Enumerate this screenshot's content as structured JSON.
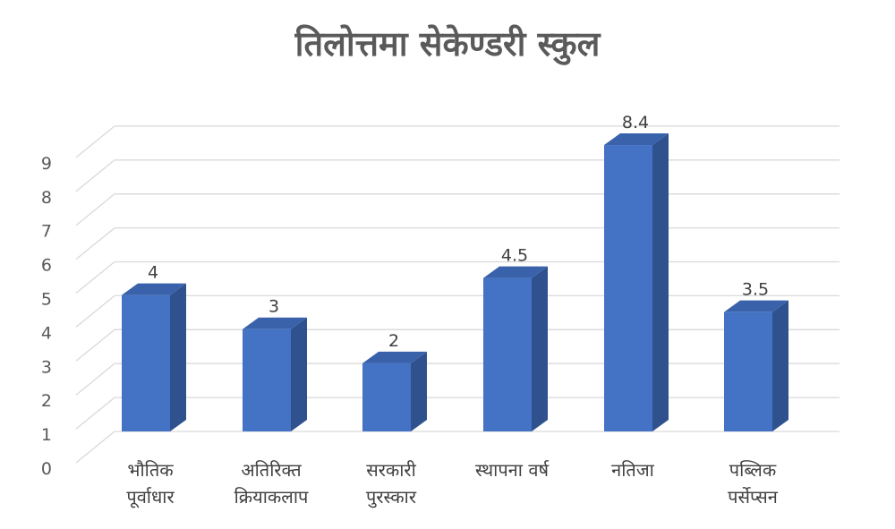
{
  "chart_data": {
    "type": "bar",
    "title": "तिलोत्तमा सेकेण्डरी स्कुल",
    "categories": [
      [
        "भौतिक",
        "पूर्वाधार"
      ],
      [
        "अतिरिक्त",
        "क्रियाकलाप"
      ],
      [
        "सरकारी",
        "पुरस्कार"
      ],
      [
        "स्थापना वर्ष"
      ],
      [
        "नतिजा"
      ],
      [
        "पब्लिक",
        "पर्सेप्सन"
      ]
    ],
    "values": [
      4,
      3,
      2,
      4.5,
      8.4,
      3.5
    ],
    "data_labels": [
      "4",
      "3",
      "2",
      "4.5",
      "8.4",
      "3.5"
    ],
    "yticks": [
      "0",
      "1",
      "2",
      "3",
      "4",
      "5",
      "6",
      "7",
      "8",
      "9"
    ],
    "ylim": [
      0,
      9
    ],
    "grid": true,
    "style": "3d-column",
    "colors": {
      "bar_front": "#4472c4",
      "bar_side": "#2f528f",
      "bar_top": "#3a62ab",
      "grid": "#d9d9d9"
    }
  }
}
